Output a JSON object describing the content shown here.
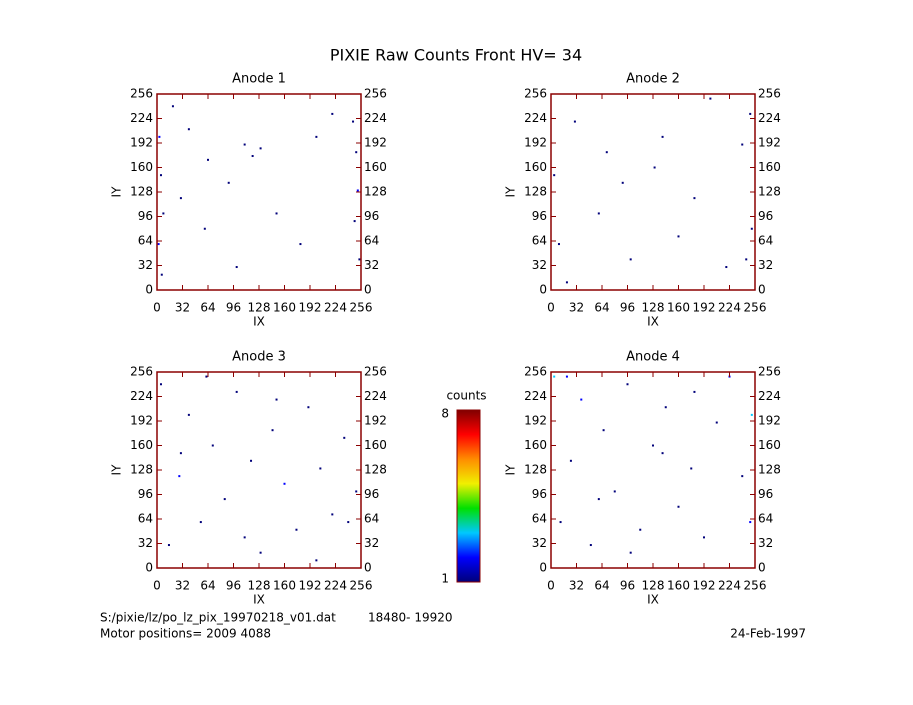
{
  "title": "PIXIE Raw Counts Front HV= 34",
  "chart_data": [
    {
      "type": "heatmap",
      "title": "Anode 1",
      "xlabel": "IX",
      "ylabel": "IY",
      "xlim": [
        0,
        256
      ],
      "ylim": [
        0,
        256
      ],
      "xticks": [
        0,
        32,
        64,
        96,
        128,
        160,
        192,
        224,
        256
      ],
      "yticks": [
        0,
        32,
        64,
        96,
        128,
        160,
        192,
        224,
        256
      ],
      "x": [
        3,
        5,
        8,
        2,
        6,
        250,
        252,
        248,
        254,
        246,
        20,
        40,
        64,
        90,
        110,
        120,
        130,
        150,
        180,
        200,
        220,
        100,
        60,
        30
      ],
      "y": [
        200,
        150,
        100,
        60,
        20,
        180,
        130,
        90,
        40,
        220,
        240,
        210,
        170,
        140,
        190,
        175,
        185,
        100,
        60,
        200,
        230,
        30,
        80,
        120
      ],
      "values": [
        2,
        1,
        1,
        2,
        1,
        1,
        2,
        1,
        1,
        1,
        1,
        1,
        1,
        1,
        1,
        1,
        1,
        1,
        1,
        1,
        1,
        1,
        1,
        1
      ]
    },
    {
      "type": "heatmap",
      "title": "Anode 2",
      "xlabel": "IX",
      "ylabel": "IY",
      "xlim": [
        0,
        256
      ],
      "ylim": [
        0,
        256
      ],
      "xticks": [
        0,
        32,
        64,
        96,
        128,
        160,
        192,
        224,
        256
      ],
      "yticks": [
        0,
        32,
        64,
        96,
        128,
        160,
        192,
        224,
        256
      ],
      "x": [
        4,
        10,
        30,
        70,
        100,
        140,
        180,
        220,
        250,
        252,
        245,
        60,
        130,
        200,
        90,
        160,
        20,
        240
      ],
      "y": [
        150,
        60,
        220,
        180,
        40,
        200,
        120,
        30,
        230,
        80,
        40,
        100,
        160,
        250,
        140,
        70,
        10,
        190
      ],
      "values": [
        1,
        1,
        1,
        1,
        1,
        1,
        1,
        1,
        1,
        1,
        1,
        1,
        1,
        1,
        1,
        1,
        1,
        1
      ]
    },
    {
      "type": "heatmap",
      "title": "Anode 3",
      "xlabel": "IX",
      "ylabel": "IY",
      "xlim": [
        0,
        256
      ],
      "ylim": [
        0,
        256
      ],
      "xticks": [
        0,
        32,
        64,
        96,
        128,
        160,
        192,
        224,
        256
      ],
      "yticks": [
        0,
        32,
        64,
        96,
        128,
        160,
        192,
        224,
        256
      ],
      "x": [
        5,
        15,
        28,
        40,
        55,
        70,
        85,
        100,
        118,
        130,
        145,
        160,
        175,
        190,
        205,
        220,
        235,
        250,
        62,
        110,
        150,
        200,
        30,
        240
      ],
      "y": [
        240,
        30,
        120,
        200,
        60,
        160,
        90,
        230,
        140,
        20,
        180,
        110,
        50,
        210,
        130,
        70,
        170,
        100,
        250,
        40,
        220,
        10,
        150,
        60
      ],
      "values": [
        1,
        1,
        2,
        1,
        1,
        1,
        1,
        1,
        1,
        1,
        1,
        2,
        1,
        1,
        1,
        1,
        1,
        1,
        1,
        1,
        1,
        1,
        1,
        1
      ]
    },
    {
      "type": "heatmap",
      "title": "Anode 4",
      "xlabel": "IX",
      "ylabel": "IY",
      "xlim": [
        0,
        256
      ],
      "ylim": [
        0,
        256
      ],
      "xticks": [
        0,
        32,
        64,
        96,
        128,
        160,
        192,
        224,
        256
      ],
      "yticks": [
        0,
        32,
        64,
        96,
        128,
        160,
        192,
        224,
        256
      ],
      "x": [
        4,
        12,
        25,
        38,
        50,
        66,
        80,
        96,
        112,
        128,
        144,
        160,
        176,
        192,
        208,
        224,
        240,
        252,
        250,
        20,
        100,
        180,
        60,
        140
      ],
      "y": [
        250,
        60,
        140,
        220,
        30,
        180,
        100,
        240,
        50,
        160,
        210,
        80,
        130,
        40,
        190,
        250,
        120,
        200,
        60,
        250,
        20,
        230,
        90,
        150
      ],
      "values": [
        3,
        1,
        1,
        2,
        1,
        1,
        1,
        1,
        1,
        1,
        1,
        1,
        1,
        1,
        1,
        2,
        1,
        3,
        2,
        2,
        1,
        1,
        1,
        1
      ]
    }
  ],
  "colorbar": {
    "title": "counts",
    "ylim": [
      1,
      8
    ],
    "yticks": [
      1,
      8
    ],
    "colors": [
      "#00007a",
      "#0000ff",
      "#00c8ff",
      "#00e000",
      "#f0f000",
      "#ff8c00",
      "#ff0000",
      "#800000"
    ]
  },
  "footer": {
    "file": "S:/pixie/lz/po_lz_pix_19970218_v01.dat",
    "range": "18480- 19920",
    "motor": "Motor positions= 2009 4088",
    "date": "24-Feb-1997"
  }
}
